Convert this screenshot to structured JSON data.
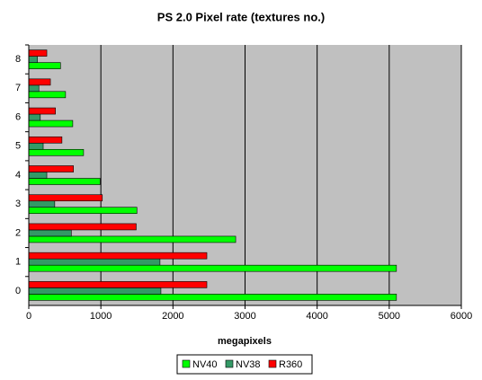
{
  "chart_data": {
    "type": "hbar",
    "title": "PS 2.0 Pixel rate (textures no.)",
    "x_label": "megapixels",
    "categories": [
      "0",
      "1",
      "2",
      "3",
      "4",
      "5",
      "6",
      "7",
      "8"
    ],
    "series": [
      {
        "name": "NV40",
        "color": "#00ff00",
        "values": [
          5100,
          5100,
          2870,
          1500,
          990,
          760,
          610,
          510,
          440
        ]
      },
      {
        "name": "NV38",
        "color": "#339966",
        "values": [
          1833,
          1820,
          590,
          360,
          250,
          200,
          160,
          140,
          120
        ]
      },
      {
        "name": "R360",
        "color": "#ff0000",
        "values": [
          2470,
          2470,
          1490,
          1020,
          620,
          460,
          370,
          300,
          250
        ]
      }
    ],
    "xlim": [
      0,
      6000
    ],
    "xticks": [
      0,
      1000,
      2000,
      3000,
      4000,
      5000,
      6000
    ],
    "grid": true,
    "legend": "bottom"
  }
}
